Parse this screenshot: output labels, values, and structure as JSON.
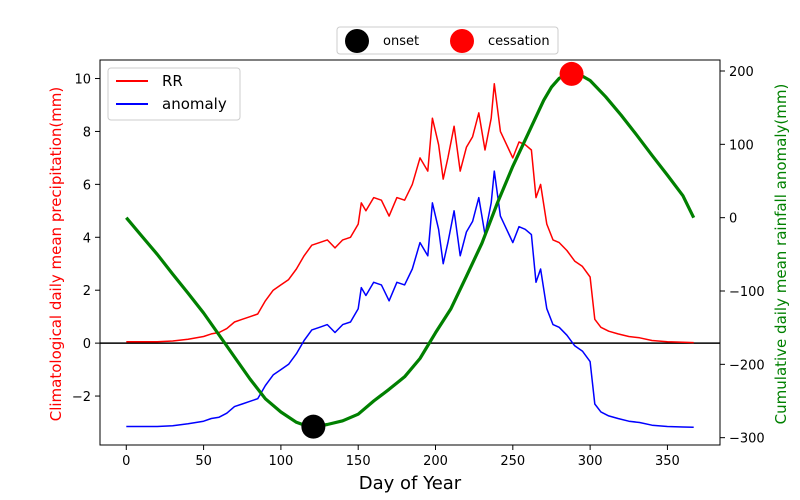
{
  "chart_data": {
    "type": "line",
    "xlabel": "Day of Year",
    "ylabel_left": "Climatological daily mean precipitation(mm)",
    "ylabel_right": "Cumulative daily mean rainfall anomaly(mm)",
    "xlim": [
      -17,
      384
    ],
    "ylim_left": [
      -3.85,
      10.7
    ],
    "ylim_right": [
      -310,
      215
    ],
    "x_ticks": [
      0,
      50,
      100,
      150,
      200,
      250,
      300,
      350
    ],
    "y_ticks_left": [
      -2,
      0,
      2,
      4,
      6,
      8,
      10
    ],
    "y_ticks_right": [
      -300,
      -200,
      -100,
      0,
      100,
      200
    ],
    "zero_line": 0,
    "colors": {
      "rr": "#ff0000",
      "anomaly": "#0000ff",
      "cumulative": "#008000",
      "onset": "#000000",
      "cessation": "#ff0000",
      "ylabel_left": "#ff0000",
      "ylabel_right": "#008000"
    },
    "legend_left": [
      {
        "key": "rr",
        "label": "RR"
      },
      {
        "key": "anomaly",
        "label": "anomaly"
      }
    ],
    "legend_top": [
      {
        "key": "onset",
        "label": "onset"
      },
      {
        "key": "cessation",
        "label": "cessation"
      }
    ],
    "series": [
      {
        "key": "rr",
        "axis": "left",
        "points": [
          [
            0,
            0.05
          ],
          [
            10,
            0.05
          ],
          [
            20,
            0.05
          ],
          [
            30,
            0.08
          ],
          [
            40,
            0.15
          ],
          [
            50,
            0.25
          ],
          [
            55,
            0.35
          ],
          [
            60,
            0.4
          ],
          [
            65,
            0.55
          ],
          [
            70,
            0.8
          ],
          [
            75,
            0.9
          ],
          [
            80,
            1.0
          ],
          [
            85,
            1.1
          ],
          [
            90,
            1.6
          ],
          [
            95,
            2.0
          ],
          [
            100,
            2.2
          ],
          [
            105,
            2.4
          ],
          [
            110,
            2.8
          ],
          [
            115,
            3.3
          ],
          [
            120,
            3.7
          ],
          [
            125,
            3.8
          ],
          [
            130,
            3.9
          ],
          [
            135,
            3.6
          ],
          [
            140,
            3.9
          ],
          [
            145,
            4.0
          ],
          [
            150,
            4.5
          ],
          [
            152,
            5.3
          ],
          [
            155,
            5.0
          ],
          [
            160,
            5.5
          ],
          [
            165,
            5.4
          ],
          [
            170,
            4.8
          ],
          [
            175,
            5.5
          ],
          [
            180,
            5.4
          ],
          [
            185,
            6.0
          ],
          [
            190,
            7.0
          ],
          [
            195,
            6.5
          ],
          [
            198,
            8.5
          ],
          [
            202,
            7.5
          ],
          [
            205,
            6.2
          ],
          [
            208,
            7.0
          ],
          [
            212,
            8.2
          ],
          [
            216,
            6.5
          ],
          [
            220,
            7.4
          ],
          [
            224,
            7.8
          ],
          [
            228,
            8.7
          ],
          [
            232,
            7.3
          ],
          [
            236,
            8.5
          ],
          [
            238,
            9.8
          ],
          [
            242,
            8.0
          ],
          [
            246,
            7.5
          ],
          [
            250,
            7.0
          ],
          [
            254,
            7.6
          ],
          [
            258,
            7.5
          ],
          [
            262,
            7.3
          ],
          [
            265,
            5.5
          ],
          [
            268,
            6.0
          ],
          [
            272,
            4.5
          ],
          [
            276,
            3.9
          ],
          [
            280,
            3.8
          ],
          [
            285,
            3.5
          ],
          [
            290,
            3.1
          ],
          [
            295,
            2.9
          ],
          [
            300,
            2.5
          ],
          [
            303,
            0.9
          ],
          [
            307,
            0.6
          ],
          [
            312,
            0.45
          ],
          [
            318,
            0.35
          ],
          [
            325,
            0.25
          ],
          [
            332,
            0.2
          ],
          [
            340,
            0.1
          ],
          [
            350,
            0.05
          ],
          [
            360,
            0.03
          ],
          [
            367,
            0.02
          ]
        ]
      },
      {
        "key": "anomaly",
        "axis": "left",
        "points": [
          [
            0,
            -3.15
          ],
          [
            10,
            -3.15
          ],
          [
            20,
            -3.15
          ],
          [
            30,
            -3.12
          ],
          [
            40,
            -3.05
          ],
          [
            50,
            -2.95
          ],
          [
            55,
            -2.85
          ],
          [
            60,
            -2.8
          ],
          [
            65,
            -2.65
          ],
          [
            70,
            -2.4
          ],
          [
            75,
            -2.3
          ],
          [
            80,
            -2.2
          ],
          [
            85,
            -2.1
          ],
          [
            90,
            -1.6
          ],
          [
            95,
            -1.2
          ],
          [
            100,
            -1.0
          ],
          [
            105,
            -0.8
          ],
          [
            110,
            -0.4
          ],
          [
            115,
            0.1
          ],
          [
            120,
            0.5
          ],
          [
            125,
            0.6
          ],
          [
            130,
            0.7
          ],
          [
            135,
            0.4
          ],
          [
            140,
            0.7
          ],
          [
            145,
            0.8
          ],
          [
            150,
            1.3
          ],
          [
            152,
            2.1
          ],
          [
            155,
            1.8
          ],
          [
            160,
            2.3
          ],
          [
            165,
            2.2
          ],
          [
            170,
            1.6
          ],
          [
            175,
            2.3
          ],
          [
            180,
            2.2
          ],
          [
            185,
            2.8
          ],
          [
            190,
            3.8
          ],
          [
            195,
            3.3
          ],
          [
            198,
            5.3
          ],
          [
            202,
            4.3
          ],
          [
            205,
            3.0
          ],
          [
            208,
            3.8
          ],
          [
            212,
            5.0
          ],
          [
            216,
            3.3
          ],
          [
            220,
            4.2
          ],
          [
            224,
            4.6
          ],
          [
            228,
            5.5
          ],
          [
            232,
            4.1
          ],
          [
            236,
            5.3
          ],
          [
            238,
            6.5
          ],
          [
            242,
            4.8
          ],
          [
            246,
            4.3
          ],
          [
            250,
            3.8
          ],
          [
            254,
            4.4
          ],
          [
            258,
            4.3
          ],
          [
            262,
            4.1
          ],
          [
            265,
            2.3
          ],
          [
            268,
            2.8
          ],
          [
            272,
            1.3
          ],
          [
            276,
            0.7
          ],
          [
            280,
            0.6
          ],
          [
            285,
            0.3
          ],
          [
            290,
            -0.1
          ],
          [
            295,
            -0.3
          ],
          [
            300,
            -0.7
          ],
          [
            303,
            -2.3
          ],
          [
            307,
            -2.6
          ],
          [
            312,
            -2.75
          ],
          [
            318,
            -2.85
          ],
          [
            325,
            -2.95
          ],
          [
            332,
            -3.0
          ],
          [
            340,
            -3.1
          ],
          [
            350,
            -3.15
          ],
          [
            360,
            -3.17
          ],
          [
            367,
            -3.18
          ]
        ]
      },
      {
        "key": "cumulative",
        "axis": "right",
        "points": [
          [
            0,
            0
          ],
          [
            10,
            -25
          ],
          [
            20,
            -50
          ],
          [
            30,
            -77
          ],
          [
            40,
            -103
          ],
          [
            50,
            -130
          ],
          [
            60,
            -160
          ],
          [
            70,
            -190
          ],
          [
            80,
            -220
          ],
          [
            90,
            -247
          ],
          [
            100,
            -265
          ],
          [
            110,
            -279
          ],
          [
            118,
            -285
          ],
          [
            121,
            -285
          ],
          [
            130,
            -282
          ],
          [
            140,
            -277
          ],
          [
            150,
            -268
          ],
          [
            160,
            -250
          ],
          [
            170,
            -234
          ],
          [
            180,
            -217
          ],
          [
            190,
            -192
          ],
          [
            200,
            -157
          ],
          [
            210,
            -124
          ],
          [
            220,
            -80
          ],
          [
            230,
            -35
          ],
          [
            240,
            20
          ],
          [
            250,
            70
          ],
          [
            260,
            115
          ],
          [
            270,
            160
          ],
          [
            275,
            178
          ],
          [
            280,
            190
          ],
          [
            285,
            195
          ],
          [
            288,
            196
          ],
          [
            295,
            193
          ],
          [
            300,
            187
          ],
          [
            310,
            165
          ],
          [
            320,
            140
          ],
          [
            330,
            113
          ],
          [
            340,
            85
          ],
          [
            350,
            58
          ],
          [
            360,
            30
          ],
          [
            367,
            0
          ]
        ]
      }
    ],
    "markers": [
      {
        "key": "onset",
        "axis": "right",
        "x": 121,
        "y": -285
      },
      {
        "key": "cessation",
        "axis": "right",
        "x": 288,
        "y": 196
      }
    ]
  }
}
